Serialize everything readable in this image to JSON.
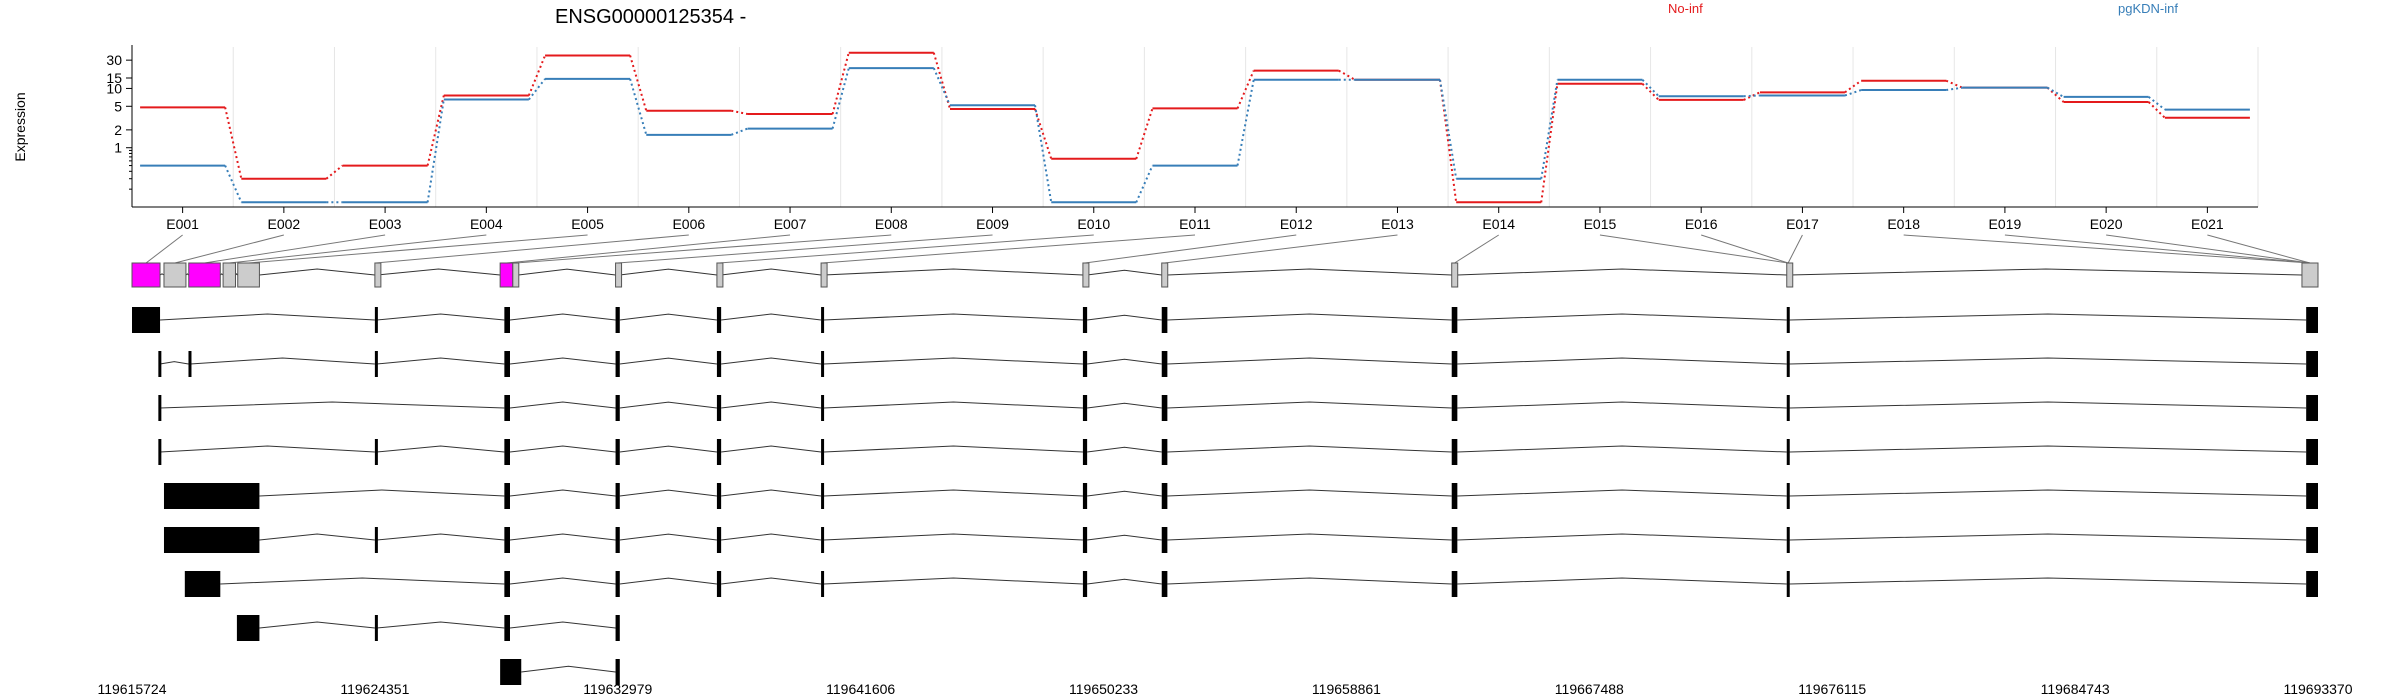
{
  "chart_data": {
    "type": "line",
    "title": "ENSG00000125354 -",
    "ylabel": "Expression",
    "yscale": "log",
    "yticks": [
      "1",
      "2",
      "5",
      "10",
      "15",
      "30"
    ],
    "categories": [
      "E001",
      "E002",
      "E003",
      "E004",
      "E005",
      "E006",
      "E007",
      "E008",
      "E009",
      "E010",
      "E011",
      "E012",
      "E013",
      "E014",
      "E015",
      "E016",
      "E017",
      "E018",
      "E019",
      "E020",
      "E021"
    ],
    "series": [
      {
        "name": "No-inf",
        "color": "#e41a1c",
        "values": [
          4.8,
          0.3,
          0.5,
          7.6,
          36,
          4.2,
          3.7,
          40,
          4.5,
          0.65,
          4.6,
          20,
          14,
          0.12,
          12,
          6.4,
          8.6,
          13.5,
          10.3,
          5.9,
          3.2
        ]
      },
      {
        "name": "pgKDN-inf",
        "color": "#377eb8",
        "values": [
          0.5,
          0.12,
          0.12,
          6.5,
          14.5,
          1.65,
          2.1,
          22,
          5.2,
          0.12,
          0.5,
          14,
          14,
          0.3,
          14,
          7.4,
          7.6,
          9.4,
          10.3,
          7.2,
          4.4
        ]
      }
    ],
    "genomic_axis": {
      "start": 119615724,
      "end": 119693370,
      "ticks": [
        "119615724",
        "119624351",
        "119632979",
        "119641606",
        "119650233",
        "119658861",
        "119667488",
        "119676115",
        "119684743",
        "119693370"
      ]
    },
    "exons": [
      {
        "id": "E001",
        "start": 119615724,
        "end": 119616720,
        "highlight": true
      },
      {
        "id": "E002",
        "start": 119616860,
        "end": 119617640,
        "highlight": false
      },
      {
        "id": "E003",
        "start": 119617740,
        "end": 119618860,
        "highlight": true
      },
      {
        "id": "E004",
        "start": 119618960,
        "end": 119619400,
        "highlight": false
      },
      {
        "id": "E005",
        "start": 119619480,
        "end": 119620250,
        "highlight": false
      },
      {
        "id": "E006",
        "start": 119624351,
        "end": 119624420,
        "highlight": false
      },
      {
        "id": "E007",
        "start": 119628800,
        "end": 119629250,
        "highlight": true
      },
      {
        "id": "E008",
        "start": 119629250,
        "end": 119629450,
        "highlight": false
      },
      {
        "id": "E009",
        "start": 119632900,
        "end": 119633050,
        "highlight": false
      },
      {
        "id": "E010",
        "start": 119636500,
        "end": 119636650,
        "highlight": false
      },
      {
        "id": "E011",
        "start": 119640200,
        "end": 119640300,
        "highlight": false
      },
      {
        "id": "E012",
        "start": 119649500,
        "end": 119649650,
        "highlight": false
      },
      {
        "id": "E013",
        "start": 119652300,
        "end": 119652500,
        "highlight": false
      },
      {
        "id": "E014",
        "start": 119662600,
        "end": 119662800,
        "highlight": false
      },
      {
        "id": "E015",
        "start": 119674500,
        "end": 119674600,
        "highlight": false
      },
      {
        "id": "E016",
        "start": 119692800,
        "end": 119693370,
        "highlight": false
      }
    ],
    "exon_map": [
      0,
      1,
      2,
      3,
      4,
      5,
      6,
      7,
      8,
      9,
      10,
      11,
      12,
      13,
      14,
      14,
      14,
      15,
      15,
      15,
      15
    ],
    "transcripts": [
      [
        [
          119615724,
          119616720
        ],
        [
          119624351,
          119624420
        ],
        [
          119628950,
          119629150
        ],
        [
          119632900,
          119633050
        ],
        [
          119636500,
          119636650
        ],
        [
          119640200,
          119640300
        ],
        [
          119649500,
          119649650
        ],
        [
          119652300,
          119652500
        ],
        [
          119662600,
          119662800
        ],
        [
          119674500,
          119674600
        ],
        [
          119692950,
          119693370
        ]
      ],
      [
        [
          119616660,
          119616720
        ],
        [
          119617730,
          119617790
        ],
        [
          119624351,
          119624420
        ],
        [
          119628950,
          119629150
        ],
        [
          119632900,
          119633050
        ],
        [
          119636500,
          119636650
        ],
        [
          119640200,
          119640300
        ],
        [
          119649500,
          119649650
        ],
        [
          119652300,
          119652500
        ],
        [
          119662600,
          119662800
        ],
        [
          119674500,
          119674600
        ],
        [
          119692950,
          119693370
        ]
      ],
      [
        [
          119616660,
          119616720
        ],
        [
          119628950,
          119629150
        ],
        [
          119632900,
          119633050
        ],
        [
          119636500,
          119636650
        ],
        [
          119640200,
          119640300
        ],
        [
          119649500,
          119649650
        ],
        [
          119652300,
          119652500
        ],
        [
          119662600,
          119662800
        ],
        [
          119674500,
          119674600
        ],
        [
          119692950,
          119693370
        ]
      ],
      [
        [
          119616660,
          119616720
        ],
        [
          119624351,
          119624420
        ],
        [
          119628950,
          119629150
        ],
        [
          119632900,
          119633050
        ],
        [
          119636500,
          119636650
        ],
        [
          119640200,
          119640300
        ],
        [
          119649500,
          119649650
        ],
        [
          119652300,
          119652500
        ],
        [
          119662600,
          119662800
        ],
        [
          119674500,
          119674600
        ],
        [
          119692950,
          119693370
        ]
      ],
      [
        [
          119616860,
          119620250
        ],
        [
          119628950,
          119629150
        ],
        [
          119632900,
          119633050
        ],
        [
          119636500,
          119636650
        ],
        [
          119640200,
          119640300
        ],
        [
          119649500,
          119649650
        ],
        [
          119652300,
          119652500
        ],
        [
          119662600,
          119662800
        ],
        [
          119674500,
          119674600
        ],
        [
          119692950,
          119693370
        ]
      ],
      [
        [
          119616860,
          119620250
        ],
        [
          119624351,
          119624420
        ],
        [
          119628950,
          119629150
        ],
        [
          119632900,
          119633050
        ],
        [
          119636500,
          119636650
        ],
        [
          119640200,
          119640300
        ],
        [
          119649500,
          119649650
        ],
        [
          119652300,
          119652500
        ],
        [
          119662600,
          119662800
        ],
        [
          119674500,
          119674600
        ],
        [
          119692950,
          119693370
        ]
      ],
      [
        [
          119617600,
          119618860
        ],
        [
          119628950,
          119629150
        ],
        [
          119632900,
          119633050
        ],
        [
          119636500,
          119636650
        ],
        [
          119640200,
          119640300
        ],
        [
          119649500,
          119649650
        ],
        [
          119652300,
          119652500
        ],
        [
          119662600,
          119662800
        ],
        [
          119674500,
          119674600
        ],
        [
          119692950,
          119693370
        ]
      ],
      [
        [
          119619450,
          119620250
        ],
        [
          119624351,
          119624420
        ],
        [
          119628950,
          119629150
        ],
        [
          119632900,
          119633050
        ]
      ],
      [
        [
          119628800,
          119629550
        ],
        [
          119632900,
          119633050
        ]
      ]
    ]
  }
}
